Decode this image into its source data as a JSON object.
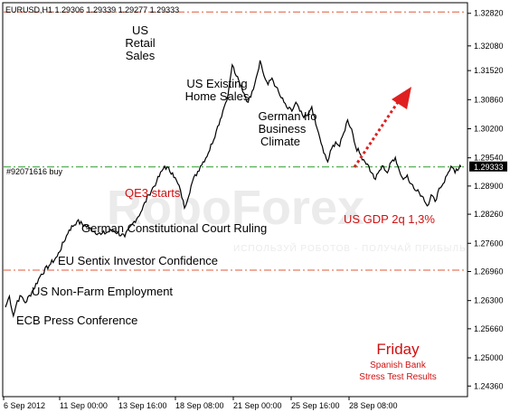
{
  "chart_data": {
    "type": "line",
    "title": "EURUSD,H1  1.29306 1.29339 1.29277 1.29333",
    "x_labels": [
      "6 Sep 2012",
      "11 Sep 00:00",
      "13 Sep 16:00",
      "18 Sep 08:00",
      "21 Sep 00:00",
      "25 Sep 16:00",
      "28 Sep 08:00"
    ],
    "y_ticks": [
      "1.32820",
      "1.32080",
      "1.31520",
      "1.30860",
      "1.30200",
      "1.29540",
      "1.28900",
      "1.28260",
      "1.27600",
      "1.26960",
      "1.26300",
      "1.25660",
      "1.25000",
      "1.24360"
    ],
    "ylim": [
      1.2414,
      1.3304
    ],
    "order_label": "#92071616 buy",
    "current_price": "1.29333",
    "levels": [
      {
        "price": 1.3285,
        "color": "#e05a3a",
        "style": "dash-dot"
      },
      {
        "price": 1.29333,
        "color": "#2a9a2a",
        "style": "dash-dot"
      },
      {
        "price": 1.2699,
        "color": "#e05a3a",
        "style": "dash-dot"
      }
    ],
    "series": [
      {
        "color": "#000000",
        "values": [
          [
            0,
            1.2615
          ],
          [
            1,
            1.264
          ],
          [
            2,
            1.2595
          ],
          [
            3,
            1.263
          ],
          [
            4,
            1.264
          ],
          [
            5,
            1.2625
          ],
          [
            7,
            1.2655
          ],
          [
            9,
            1.269
          ],
          [
            11,
            1.271
          ],
          [
            13,
            1.273
          ],
          [
            16,
            1.279
          ],
          [
            18,
            1.281
          ],
          [
            21,
            1.2795
          ],
          [
            24,
            1.278
          ],
          [
            27,
            1.279
          ],
          [
            30,
            1.2775
          ],
          [
            32,
            1.2805
          ],
          [
            34,
            1.283
          ],
          [
            36,
            1.287
          ],
          [
            38,
            1.29
          ],
          [
            40,
            1.2935
          ],
          [
            42,
            1.292
          ],
          [
            44,
            1.288
          ],
          [
            45,
            1.284
          ],
          [
            47,
            1.29
          ],
          [
            49,
            1.2935
          ],
          [
            51,
            1.2965
          ],
          [
            53,
            1.3015
          ],
          [
            55,
            1.307
          ],
          [
            56,
            1.31
          ],
          [
            57,
            1.3165
          ],
          [
            58,
            1.314
          ],
          [
            59,
            1.312
          ],
          [
            60,
            1.31
          ],
          [
            61,
            1.308
          ],
          [
            62,
            1.3105
          ],
          [
            63,
            1.3135
          ],
          [
            64,
            1.3175
          ],
          [
            65,
            1.314
          ],
          [
            66,
            1.312
          ],
          [
            67,
            1.3135
          ],
          [
            68,
            1.3115
          ],
          [
            69,
            1.3095
          ],
          [
            70,
            1.308
          ],
          [
            71,
            1.3065
          ],
          [
            72,
            1.306
          ],
          [
            73,
            1.308
          ],
          [
            74,
            1.306
          ],
          [
            75,
            1.3045
          ],
          [
            76,
            1.305
          ],
          [
            77,
            1.307
          ],
          [
            78,
            1.303
          ],
          [
            79,
            1.3
          ],
          [
            80,
            1.2965
          ],
          [
            81,
            1.2945
          ],
          [
            82,
            1.2975
          ],
          [
            83,
            1.299
          ],
          [
            84,
            1.298
          ],
          [
            85,
            1.301
          ],
          [
            86,
            1.304
          ],
          [
            87,
            1.302
          ],
          [
            88,
            1.298
          ],
          [
            89,
            1.2965
          ],
          [
            90,
            1.295
          ],
          [
            91,
            1.294
          ],
          [
            92,
            1.292
          ],
          [
            93,
            1.2905
          ],
          [
            94,
            1.2925
          ],
          [
            95,
            1.2935
          ],
          [
            96,
            1.292
          ],
          [
            97,
            1.2945
          ],
          [
            98,
            1.2955
          ],
          [
            99,
            1.2925
          ],
          [
            100,
            1.2905
          ],
          [
            101,
            1.2915
          ],
          [
            102,
            1.2895
          ],
          [
            103,
            1.288
          ],
          [
            104,
            1.2875
          ],
          [
            105,
            1.2865
          ],
          [
            106,
            1.2845
          ],
          [
            107,
            1.287
          ],
          [
            108,
            1.2855
          ],
          [
            109,
            1.2885
          ],
          [
            110,
            1.2895
          ],
          [
            111,
            1.2915
          ],
          [
            112,
            1.2935
          ],
          [
            113,
            1.292
          ],
          [
            114,
            1.293
          ],
          [
            114.5,
            1.29333
          ]
        ]
      }
    ],
    "annotations": [
      {
        "text": "US Retail Sales",
        "lines": [
          "US",
          "Retail",
          "Sales"
        ]
      },
      {
        "text": "US Existing Home Sales",
        "lines": [
          "US Existing",
          "Home Sales"
        ]
      },
      {
        "text": "German Ifo Business Climate",
        "lines": [
          "German Ifo",
          "Business",
          "Climate"
        ]
      },
      {
        "text": "QE3 starts",
        "lines": [
          "QE3 starts"
        ]
      },
      {
        "text": "German Constitutional Court Ruling",
        "lines": [
          "German Constitutional Court Ruling"
        ]
      },
      {
        "text": "EU Sentix Investor Confidence",
        "lines": [
          "EU Sentix Investor Confidence"
        ]
      },
      {
        "text": "US Non-Farm Employment",
        "lines": [
          "US Non-Farm Employment"
        ]
      },
      {
        "text": "ECB Press Conference",
        "lines": [
          "ECB Press Conference"
        ]
      },
      {
        "text": "US GDP 2q 1,3%",
        "lines": [
          "US GDP 2q 1,3%"
        ]
      }
    ],
    "friday_note": {
      "title": "Friday",
      "lines": [
        "Spanish Bank",
        "Stress Test Results"
      ]
    },
    "watermark": "RoboForex",
    "watermark_sub": "ИСПОЛЬЗУЙ РОБОТОВ - ПОЛУЧАЙ ПРИБЫЛЬ",
    "colors": {
      "price_line": "#000000",
      "resistance": "#e05a3a",
      "order_line": "#2a9a2a",
      "accent_red": "#d01010",
      "arrow": "#e02020"
    }
  }
}
